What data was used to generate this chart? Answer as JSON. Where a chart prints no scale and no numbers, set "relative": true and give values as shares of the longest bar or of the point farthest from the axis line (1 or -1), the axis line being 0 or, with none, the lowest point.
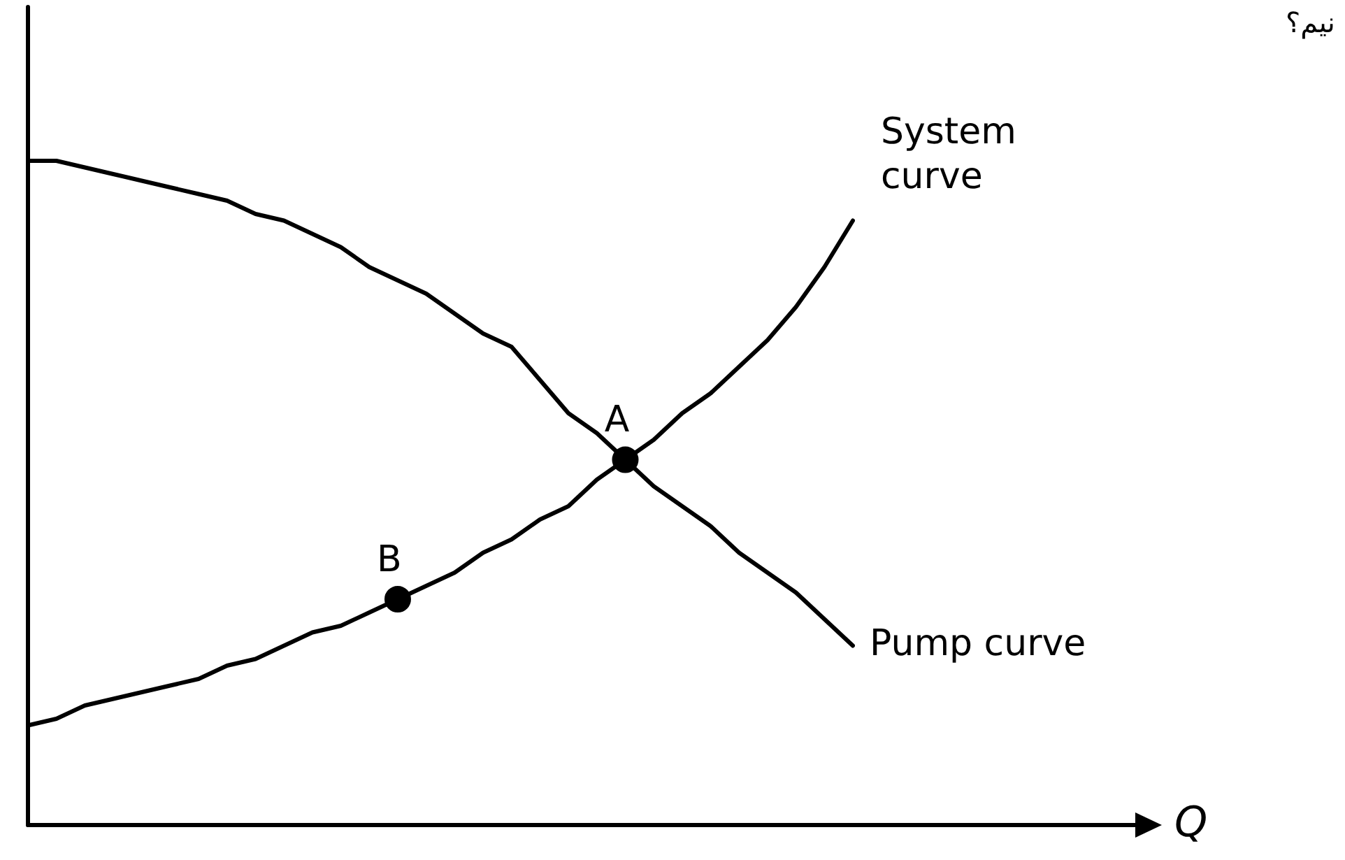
{
  "chart_data": {
    "type": "line",
    "relative": true,
    "annotations": [
      "نيم؟",
      "Q"
    ],
    "legend": false,
    "marker": "none",
    "line_style": "solid",
    "categories": [
      null,
      null,
      null,
      null,
      null,
      null,
      null,
      null,
      null,
      null,
      null,
      null,
      null,
      null,
      null,
      null,
      null,
      null,
      null,
      null,
      null,
      null,
      null,
      null,
      null,
      null,
      null,
      null,
      null,
      null
    ],
    "series": [
      {
        "name": "Pump curve",
        "color": "#000000",
        "values": [
          1.0,
          1.0,
          0.99,
          0.98,
          0.97,
          0.96,
          0.95,
          0.94,
          0.92,
          0.91,
          0.89,
          0.87,
          0.84,
          0.82,
          0.8,
          0.77,
          0.74,
          0.72,
          0.67,
          0.62,
          0.59,
          0.55,
          0.51,
          0.48,
          0.45,
          0.41,
          0.38,
          0.35,
          0.31,
          0.27
        ]
      },
      {
        "name": "System curve",
        "color": "#000000",
        "values": [
          0.15,
          0.16,
          0.18,
          0.19,
          0.2,
          0.21,
          0.22,
          0.24,
          0.25,
          0.27,
          0.29,
          0.3,
          0.32,
          0.34,
          0.36,
          0.38,
          0.41,
          0.43,
          0.46,
          0.48,
          0.52,
          0.55,
          0.58,
          0.62,
          0.65,
          0.69,
          0.73,
          0.78,
          0.84,
          0.91
        ]
      },
      {
        "name": "A",
        "marker": "circle",
        "color": "#000000",
        "values": [
          null,
          null,
          null,
          null,
          null,
          null,
          null,
          null,
          null,
          null,
          null,
          null,
          null,
          null,
          null,
          null,
          null,
          null,
          null,
          null,
          null,
          0.55,
          null,
          null,
          null,
          null,
          null,
          null,
          null,
          null
        ]
      },
      {
        "name": "B",
        "marker": "circle",
        "color": "#000000",
        "values": [
          null,
          null,
          null,
          null,
          null,
          null,
          null,
          null,
          null,
          null,
          null,
          null,
          null,
          0.34,
          null,
          null,
          null,
          null,
          null,
          null,
          null,
          null,
          null,
          null,
          null,
          null,
          null,
          null,
          null,
          null
        ]
      }
    ]
  }
}
